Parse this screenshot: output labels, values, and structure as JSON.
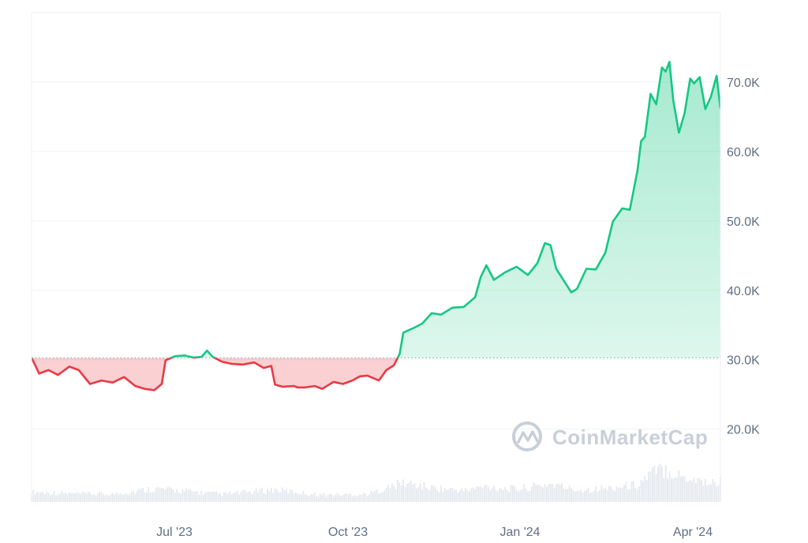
{
  "chart_data": {
    "type": "area",
    "title": "",
    "xlabel": "",
    "ylabel": "",
    "x_tick_labels": [
      "Jul '23",
      "Oct '23",
      "Jan '24",
      "Apr '24"
    ],
    "y_tick_labels": [
      "20.0K",
      "30.0K",
      "40.0K",
      "50.0K",
      "60.0K",
      "70.0K"
    ],
    "y_ticks": [
      20000,
      30000,
      40000,
      50000,
      60000,
      70000
    ],
    "ylim": [
      9500,
      80000
    ],
    "xlim": [
      "2023-04-11",
      "2024-04-10"
    ],
    "baseline": 30250,
    "baseline_style": "dotted",
    "grid": true,
    "colors": {
      "above": "#16c784",
      "below": "#ea3943",
      "above_fill": "#16c784",
      "below_fill": "#ea3943",
      "grid": "#eff2f5",
      "baseline": "#a1a7bb",
      "volume": "#e5e8ee"
    },
    "series": [
      {
        "type": "price",
        "x": [
          "2023-04-11",
          "2023-04-15",
          "2023-04-20",
          "2023-04-25",
          "2023-05-01",
          "2023-05-06",
          "2023-05-12",
          "2023-05-18",
          "2023-05-24",
          "2023-05-30",
          "2023-06-05",
          "2023-06-10",
          "2023-06-15",
          "2023-06-19",
          "2023-06-21",
          "2023-06-26",
          "2023-07-01",
          "2023-07-06",
          "2023-07-10",
          "2023-07-13",
          "2023-07-16",
          "2023-07-21",
          "2023-07-26",
          "2023-08-01",
          "2023-08-07",
          "2023-08-12",
          "2023-08-16",
          "2023-08-18",
          "2023-08-22",
          "2023-08-28",
          "2023-08-30",
          "2023-09-03",
          "2023-09-08",
          "2023-09-12",
          "2023-09-18",
          "2023-09-23",
          "2023-09-28",
          "2023-10-02",
          "2023-10-06",
          "2023-10-12",
          "2023-10-16",
          "2023-10-20",
          "2023-10-23",
          "2023-10-25",
          "2023-10-30",
          "2023-11-04",
          "2023-11-09",
          "2023-11-14",
          "2023-11-20",
          "2023-11-26",
          "2023-12-02",
          "2023-12-05",
          "2023-12-08",
          "2023-12-12",
          "2023-12-18",
          "2023-12-24",
          "2023-12-30",
          "2024-01-04",
          "2024-01-08",
          "2024-01-11",
          "2024-01-14",
          "2024-01-18",
          "2024-01-22",
          "2024-01-25",
          "2024-01-30",
          "2024-02-04",
          "2024-02-09",
          "2024-02-13",
          "2024-02-18",
          "2024-02-22",
          "2024-02-26",
          "2024-02-28",
          "2024-03-01",
          "2024-03-04",
          "2024-03-07",
          "2024-03-10",
          "2024-03-12",
          "2024-03-14",
          "2024-03-16",
          "2024-03-19",
          "2024-03-22",
          "2024-03-25",
          "2024-03-27",
          "2024-03-30",
          "2024-04-02",
          "2024-04-05",
          "2024-04-08",
          "2024-04-10"
        ],
        "y": [
          30300,
          28000,
          28500,
          27800,
          29000,
          28500,
          26500,
          27000,
          26700,
          27500,
          26200,
          25800,
          25600,
          26500,
          29900,
          30500,
          30600,
          30300,
          30400,
          31300,
          30400,
          29700,
          29400,
          29300,
          29600,
          28800,
          29100,
          26400,
          26100,
          26200,
          26000,
          26000,
          26200,
          25800,
          26800,
          26500,
          27000,
          27600,
          27700,
          27000,
          28500,
          29200,
          30800,
          33900,
          34500,
          35200,
          36700,
          36500,
          37500,
          37600,
          39000,
          41900,
          43600,
          41500,
          42600,
          43400,
          42200,
          43900,
          46800,
          46500,
          43100,
          41400,
          39700,
          40200,
          43100,
          43000,
          45400,
          49900,
          51800,
          51600,
          57200,
          61500,
          62100,
          68300,
          66800,
          72100,
          71500,
          72900,
          67400,
          62700,
          65500,
          70500,
          69800,
          70700,
          66100,
          67900,
          70900,
          66200
        ]
      },
      {
        "type": "volume",
        "x": [
          "2023-04-11",
          "2023-05-01",
          "2023-05-24",
          "2023-06-15",
          "2023-07-01",
          "2023-07-21",
          "2023-08-18",
          "2023-09-12",
          "2023-10-06",
          "2023-10-25",
          "2023-11-09",
          "2023-11-26",
          "2023-12-08",
          "2023-12-24",
          "2024-01-11",
          "2024-01-25",
          "2024-02-09",
          "2024-02-26",
          "2024-03-04",
          "2024-03-12",
          "2024-03-19",
          "2024-03-27",
          "2024-04-05",
          "2024-04-10"
        ],
        "values": [
          16,
          13,
          12,
          21,
          17,
          12,
          19,
          11,
          12,
          30,
          22,
          18,
          24,
          20,
          28,
          19,
          21,
          27,
          44,
          52,
          41,
          36,
          29,
          33
        ],
        "unit": "billion (approx.)"
      }
    ]
  },
  "watermark": {
    "brand": "CoinMarketCap",
    "icon": "coinmarketcap-logo-icon"
  }
}
